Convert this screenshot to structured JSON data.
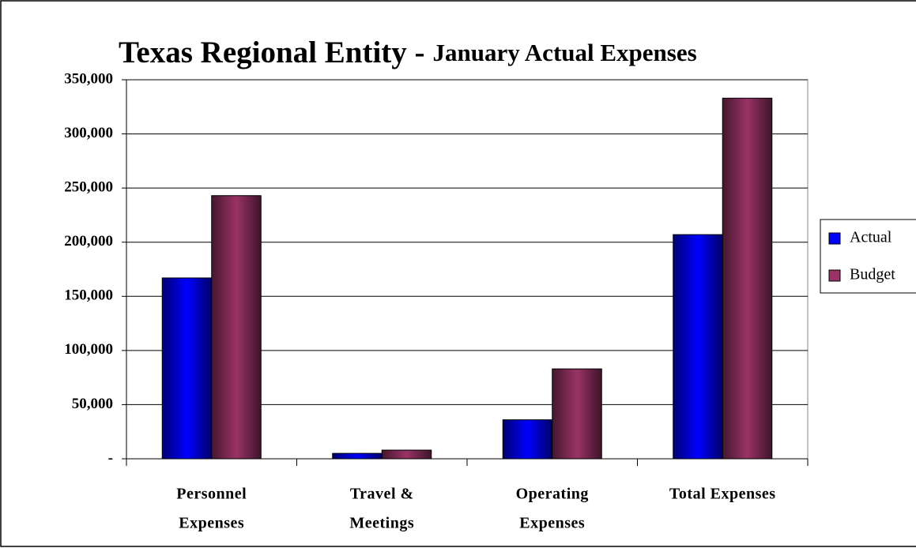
{
  "chart_data": {
    "type": "bar",
    "title": "Texas Regional Entity -",
    "subtitle": "January Actual Expenses",
    "categories": [
      [
        "Personnel",
        "Expenses"
      ],
      [
        "Travel &",
        "Meetings"
      ],
      [
        "Operating",
        "Expenses"
      ],
      [
        "Total Expenses"
      ]
    ],
    "series": [
      {
        "name": "Actual",
        "color": "#0000ff",
        "values": [
          167000,
          5000,
          36000,
          207000
        ]
      },
      {
        "name": "Budget",
        "color": "#993366",
        "values": [
          243000,
          8000,
          83000,
          333000
        ]
      }
    ],
    "ylim": [
      0,
      350000
    ],
    "yticks": [
      {
        "value": 0,
        "label": "-"
      },
      {
        "value": 50000,
        "label": "50,000"
      },
      {
        "value": 100000,
        "label": "100,000"
      },
      {
        "value": 150000,
        "label": "150,000"
      },
      {
        "value": 200000,
        "label": "200,000"
      },
      {
        "value": 250000,
        "label": "250,000"
      },
      {
        "value": 300000,
        "label": "300,000"
      },
      {
        "value": 350000,
        "label": "350,000"
      }
    ],
    "grid": true,
    "legend": "right"
  }
}
